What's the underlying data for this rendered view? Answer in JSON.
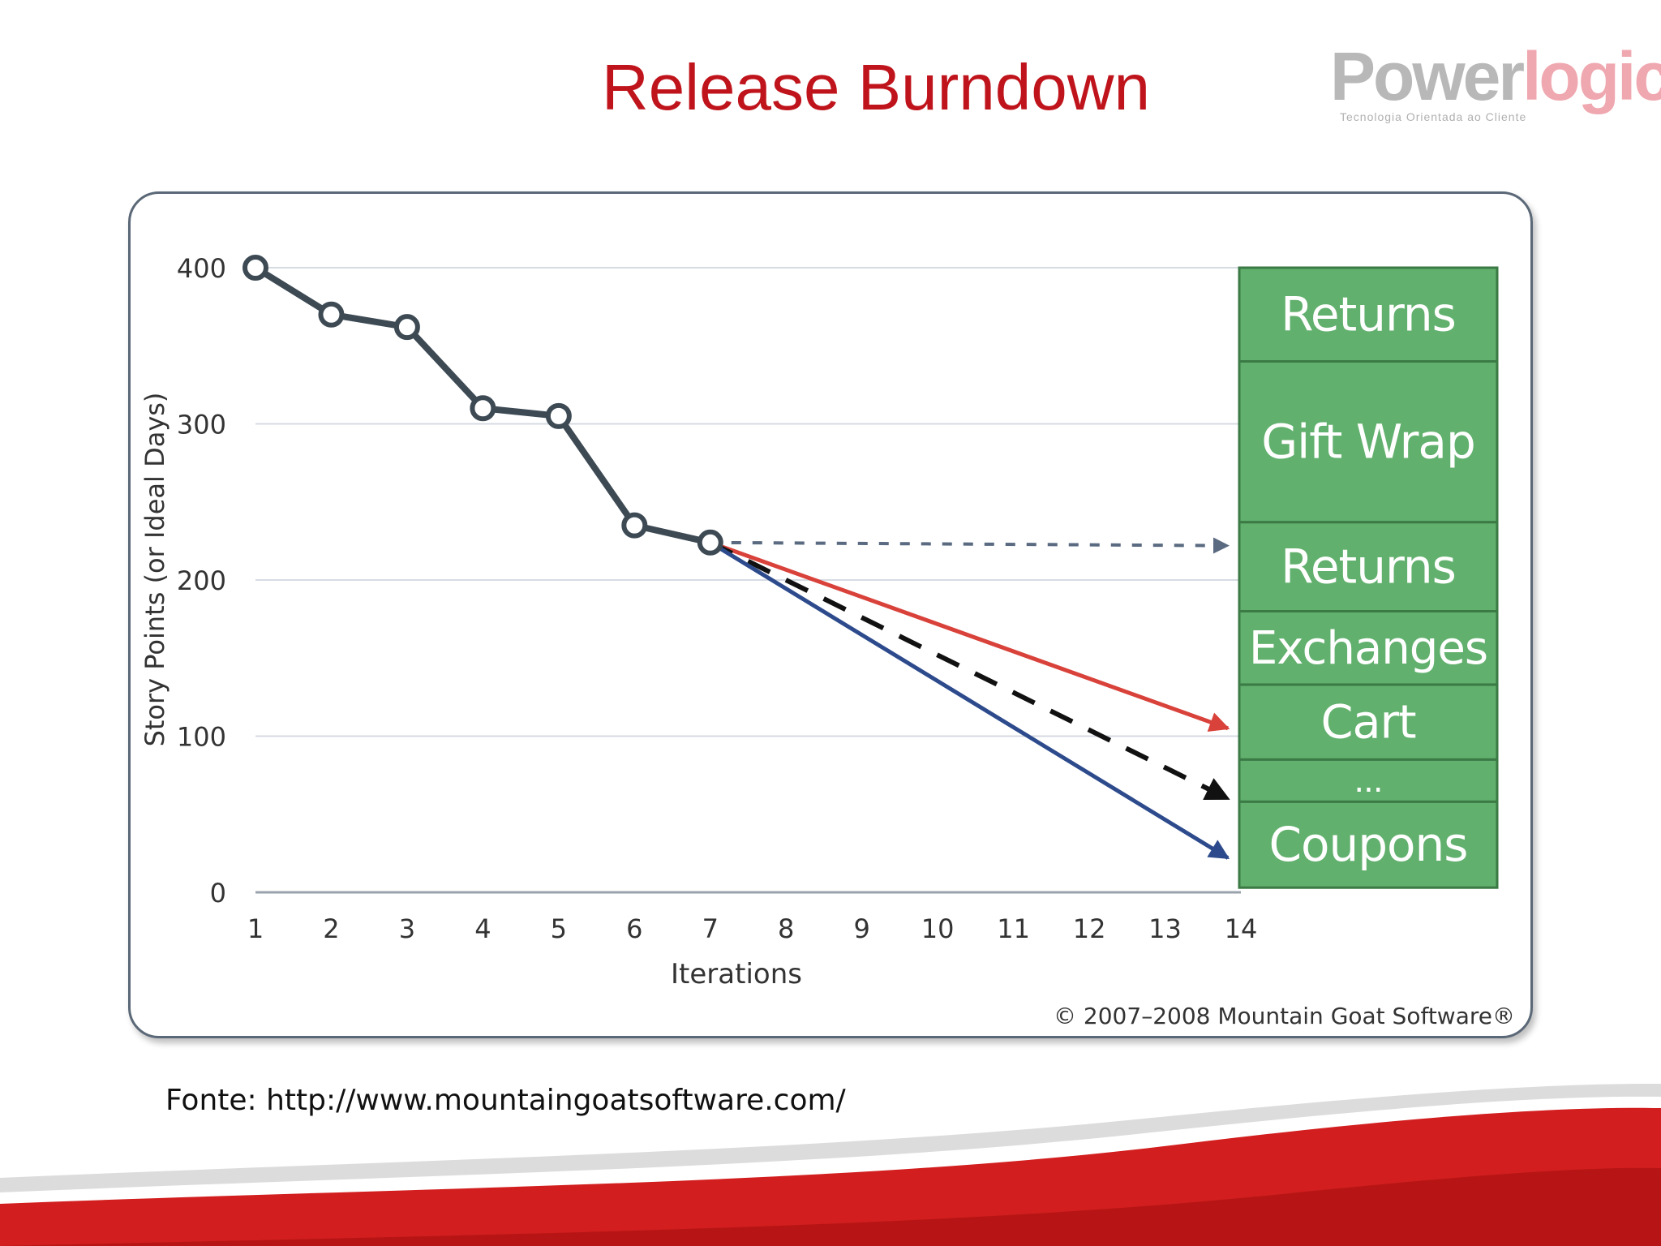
{
  "slide": {
    "title": "Release Burndown",
    "source": "Fonte: http://www.mountaingoatsoftware.com/"
  },
  "logo": {
    "part1": "Power",
    "part2": "logic",
    "tagline": "Tecnologia Orientada ao Cliente"
  },
  "colors": {
    "title": "#c0141c",
    "actual_line": "#3d4a54",
    "projection_red": "#d9423a",
    "projection_blue": "#2d4b8c",
    "projection_black": "#111111",
    "projection_flat": "#5a6a80",
    "backlog_fill": "#62b06e",
    "backlog_border": "#3b7a45",
    "swoosh": "#d21e1e"
  },
  "chart_data": {
    "type": "line",
    "xlabel": "Iterations",
    "ylabel": "Story Points (or Ideal Days)",
    "x_ticks": [
      1,
      2,
      3,
      4,
      5,
      6,
      7,
      8,
      9,
      10,
      11,
      12,
      13,
      14
    ],
    "y_ticks": [
      0,
      100,
      200,
      300,
      400
    ],
    "xlim": [
      1,
      14
    ],
    "ylim": [
      0,
      400
    ],
    "grid": true,
    "series": [
      {
        "style": "solid-markers",
        "x": [
          1,
          2,
          3,
          4,
          5,
          6,
          7
        ],
        "y": [
          400,
          370,
          362,
          310,
          305,
          235,
          224
        ]
      }
    ],
    "projections": [
      {
        "style": "dashed-flat",
        "from": [
          7,
          224
        ],
        "to": [
          14,
          222
        ]
      },
      {
        "style": "solid-red",
        "from": [
          7,
          224
        ],
        "to": [
          14,
          105
        ]
      },
      {
        "style": "dashed-black",
        "from": [
          7,
          224
        ],
        "to": [
          14,
          60
        ]
      },
      {
        "style": "solid-blue",
        "from": [
          7,
          224
        ],
        "to": [
          14,
          22
        ]
      }
    ],
    "backlog": [
      {
        "label": "Returns",
        "from": 340,
        "to": 400
      },
      {
        "label": "Gift Wrap",
        "from": 237,
        "to": 340
      },
      {
        "label": "Returns",
        "from": 180,
        "to": 237
      },
      {
        "label": "Exchanges",
        "from": 133,
        "to": 180
      },
      {
        "label": "Cart",
        "from": 85,
        "to": 133
      },
      {
        "label": "...",
        "from": 58,
        "to": 85
      },
      {
        "label": "Coupons",
        "from": 3,
        "to": 58
      }
    ],
    "copyright": "© 2007–2008 Mountain Goat Software®"
  }
}
